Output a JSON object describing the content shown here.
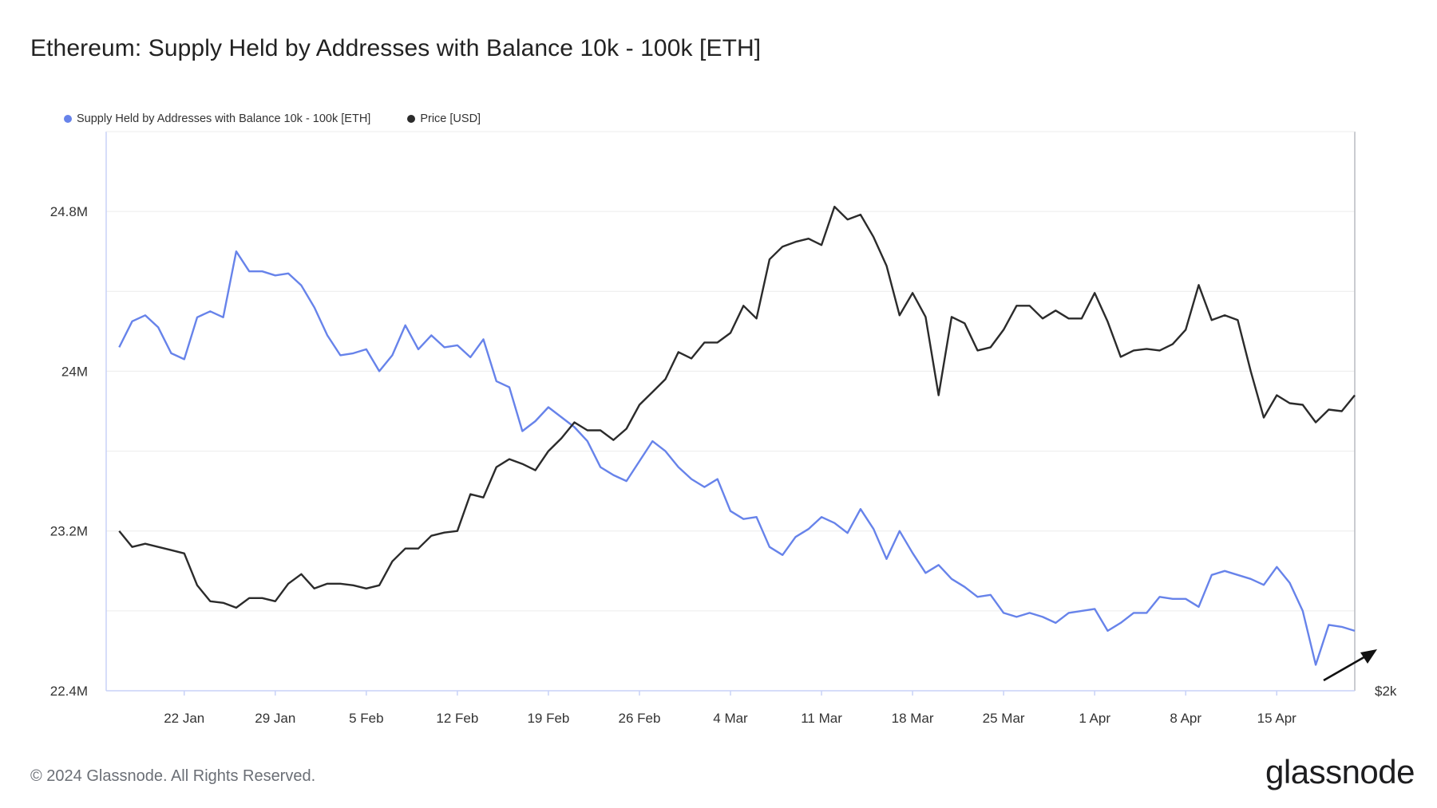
{
  "title": "Ethereum: Supply Held by Addresses with Balance 10k - 100k [ETH]",
  "legend": [
    {
      "label": "Supply Held by Addresses with Balance 10k - 100k [ETH]",
      "color": "#6783ea"
    },
    {
      "label": "Price [USD]",
      "color": "#2b2b2b"
    }
  ],
  "footer": "© 2024 Glassnode. All Rights Reserved.",
  "brand": "glassnode",
  "chart_data": {
    "type": "line",
    "x_ticks": [
      "22 Jan",
      "29 Jan",
      "5 Feb",
      "12 Feb",
      "19 Feb",
      "26 Feb",
      "4 Mar",
      "11 Mar",
      "18 Mar",
      "25 Mar",
      "1 Apr",
      "8 Apr",
      "15 Apr"
    ],
    "y_left_ticks": [
      "22.4M",
      "23.2M",
      "24M",
      "24.8M"
    ],
    "y_left_tick_values": [
      22.4,
      23.2,
      24.0,
      24.8
    ],
    "y_left_range": [
      22.4,
      25.2
    ],
    "y_right_ticks": [
      "$2k"
    ],
    "x_range_days": [
      -5,
      89
    ],
    "x_start_date": "2024-01-17",
    "grid": true,
    "legend_position": "top-left",
    "series": [
      {
        "name": "Supply Held by Addresses with Balance 10k - 100k [ETH]",
        "axis": "left",
        "color": "#6783ea",
        "points": [
          [
            -5,
            24.12
          ],
          [
            -4,
            24.25
          ],
          [
            -3,
            24.28
          ],
          [
            -2,
            24.22
          ],
          [
            -1,
            24.09
          ],
          [
            0,
            24.06
          ],
          [
            1,
            24.27
          ],
          [
            2,
            24.3
          ],
          [
            3,
            24.27
          ],
          [
            4,
            24.6
          ],
          [
            5,
            24.5
          ],
          [
            6,
            24.5
          ],
          [
            7,
            24.48
          ],
          [
            8,
            24.49
          ],
          [
            9,
            24.43
          ],
          [
            10,
            24.32
          ],
          [
            11,
            24.18
          ],
          [
            12,
            24.08
          ],
          [
            13,
            24.09
          ],
          [
            14,
            24.11
          ],
          [
            15,
            24.0
          ],
          [
            16,
            24.08
          ],
          [
            17,
            24.23
          ],
          [
            18,
            24.11
          ],
          [
            19,
            24.18
          ],
          [
            20,
            24.12
          ],
          [
            21,
            24.13
          ],
          [
            22,
            24.07
          ],
          [
            23,
            24.16
          ],
          [
            24,
            23.95
          ],
          [
            25,
            23.92
          ],
          [
            26,
            23.7
          ],
          [
            27,
            23.75
          ],
          [
            28,
            23.82
          ],
          [
            29,
            23.77
          ],
          [
            30,
            23.72
          ],
          [
            31,
            23.65
          ],
          [
            32,
            23.52
          ],
          [
            33,
            23.48
          ],
          [
            34,
            23.45
          ],
          [
            35,
            23.55
          ],
          [
            36,
            23.65
          ],
          [
            37,
            23.6
          ],
          [
            38,
            23.52
          ],
          [
            39,
            23.46
          ],
          [
            40,
            23.42
          ],
          [
            41,
            23.46
          ],
          [
            42,
            23.3
          ],
          [
            43,
            23.26
          ],
          [
            44,
            23.27
          ],
          [
            45,
            23.12
          ],
          [
            46,
            23.08
          ],
          [
            47,
            23.17
          ],
          [
            48,
            23.21
          ],
          [
            49,
            23.27
          ],
          [
            50,
            23.24
          ],
          [
            51,
            23.19
          ],
          [
            52,
            23.31
          ],
          [
            53,
            23.21
          ],
          [
            54,
            23.06
          ],
          [
            55,
            23.2
          ],
          [
            56,
            23.09
          ],
          [
            57,
            22.99
          ],
          [
            58,
            23.03
          ],
          [
            59,
            22.96
          ],
          [
            60,
            22.92
          ],
          [
            61,
            22.87
          ],
          [
            62,
            22.88
          ],
          [
            63,
            22.79
          ],
          [
            64,
            22.77
          ],
          [
            65,
            22.79
          ],
          [
            66,
            22.77
          ],
          [
            67,
            22.74
          ],
          [
            68,
            22.79
          ],
          [
            69,
            22.8
          ],
          [
            70,
            22.81
          ],
          [
            71,
            22.7
          ],
          [
            72,
            22.74
          ],
          [
            73,
            22.79
          ],
          [
            74,
            22.79
          ],
          [
            75,
            22.87
          ],
          [
            76,
            22.86
          ],
          [
            77,
            22.86
          ],
          [
            78,
            22.82
          ],
          [
            79,
            22.98
          ],
          [
            80,
            23.0
          ],
          [
            81,
            22.98
          ],
          [
            82,
            22.96
          ],
          [
            83,
            22.93
          ],
          [
            84,
            23.02
          ],
          [
            85,
            22.94
          ],
          [
            86,
            22.8
          ],
          [
            87,
            22.53
          ],
          [
            88,
            22.73
          ],
          [
            89,
            22.72
          ],
          [
            90,
            22.7
          ]
        ]
      },
      {
        "name": "Price [USD]",
        "axis": "right",
        "color": "#2b2b2b",
        "points": [
          [
            -5,
            3.0
          ],
          [
            -4,
            2.9
          ],
          [
            -3,
            2.92
          ],
          [
            -2,
            2.9
          ],
          [
            -1,
            2.88
          ],
          [
            0,
            2.86
          ],
          [
            1,
            2.66
          ],
          [
            2,
            2.56
          ],
          [
            3,
            2.55
          ],
          [
            4,
            2.52
          ],
          [
            5,
            2.58
          ],
          [
            6,
            2.58
          ],
          [
            7,
            2.56
          ],
          [
            8,
            2.67
          ],
          [
            9,
            2.73
          ],
          [
            10,
            2.64
          ],
          [
            11,
            2.67
          ],
          [
            12,
            2.67
          ],
          [
            13,
            2.66
          ],
          [
            14,
            2.64
          ],
          [
            15,
            2.66
          ],
          [
            16,
            2.81
          ],
          [
            17,
            2.89
          ],
          [
            18,
            2.89
          ],
          [
            19,
            2.97
          ],
          [
            20,
            2.99
          ],
          [
            21,
            3.0
          ],
          [
            22,
            3.23
          ],
          [
            23,
            3.21
          ],
          [
            24,
            3.4
          ],
          [
            25,
            3.45
          ],
          [
            26,
            3.42
          ],
          [
            27,
            3.38
          ],
          [
            28,
            3.5
          ],
          [
            29,
            3.58
          ],
          [
            30,
            3.68
          ],
          [
            31,
            3.63
          ],
          [
            32,
            3.63
          ],
          [
            33,
            3.57
          ],
          [
            34,
            3.64
          ],
          [
            35,
            3.79
          ],
          [
            36,
            3.87
          ],
          [
            37,
            3.95
          ],
          [
            38,
            4.12
          ],
          [
            39,
            4.08
          ],
          [
            40,
            4.18
          ],
          [
            41,
            4.18
          ],
          [
            42,
            4.24
          ],
          [
            43,
            4.41
          ],
          [
            44,
            4.33
          ],
          [
            45,
            4.7
          ],
          [
            46,
            4.78
          ],
          [
            47,
            4.81
          ],
          [
            48,
            4.83
          ],
          [
            49,
            4.79
          ],
          [
            50,
            5.03
          ],
          [
            51,
            4.95
          ],
          [
            52,
            4.98
          ],
          [
            53,
            4.84
          ],
          [
            54,
            4.66
          ],
          [
            55,
            4.35
          ],
          [
            56,
            4.49
          ],
          [
            57,
            4.34
          ],
          [
            58,
            3.85
          ],
          [
            59,
            4.34
          ],
          [
            60,
            4.3
          ],
          [
            61,
            4.13
          ],
          [
            62,
            4.15
          ],
          [
            63,
            4.26
          ],
          [
            64,
            4.41
          ],
          [
            65,
            4.41
          ],
          [
            66,
            4.33
          ],
          [
            67,
            4.38
          ],
          [
            68,
            4.33
          ],
          [
            69,
            4.33
          ],
          [
            70,
            4.49
          ],
          [
            71,
            4.31
          ],
          [
            72,
            4.09
          ],
          [
            73,
            4.13
          ],
          [
            74,
            4.14
          ],
          [
            75,
            4.13
          ],
          [
            76,
            4.17
          ],
          [
            77,
            4.26
          ],
          [
            78,
            4.54
          ],
          [
            79,
            4.32
          ],
          [
            80,
            4.35
          ],
          [
            81,
            4.32
          ],
          [
            82,
            4.0
          ],
          [
            83,
            3.71
          ],
          [
            84,
            3.85
          ],
          [
            85,
            3.8
          ],
          [
            86,
            3.79
          ],
          [
            87,
            3.68
          ],
          [
            88,
            3.76
          ],
          [
            89,
            3.75
          ],
          [
            90,
            3.85
          ]
        ]
      }
    ],
    "right_axis_range": [
      2.0,
      5.5
    ],
    "annotation": "arrow"
  }
}
